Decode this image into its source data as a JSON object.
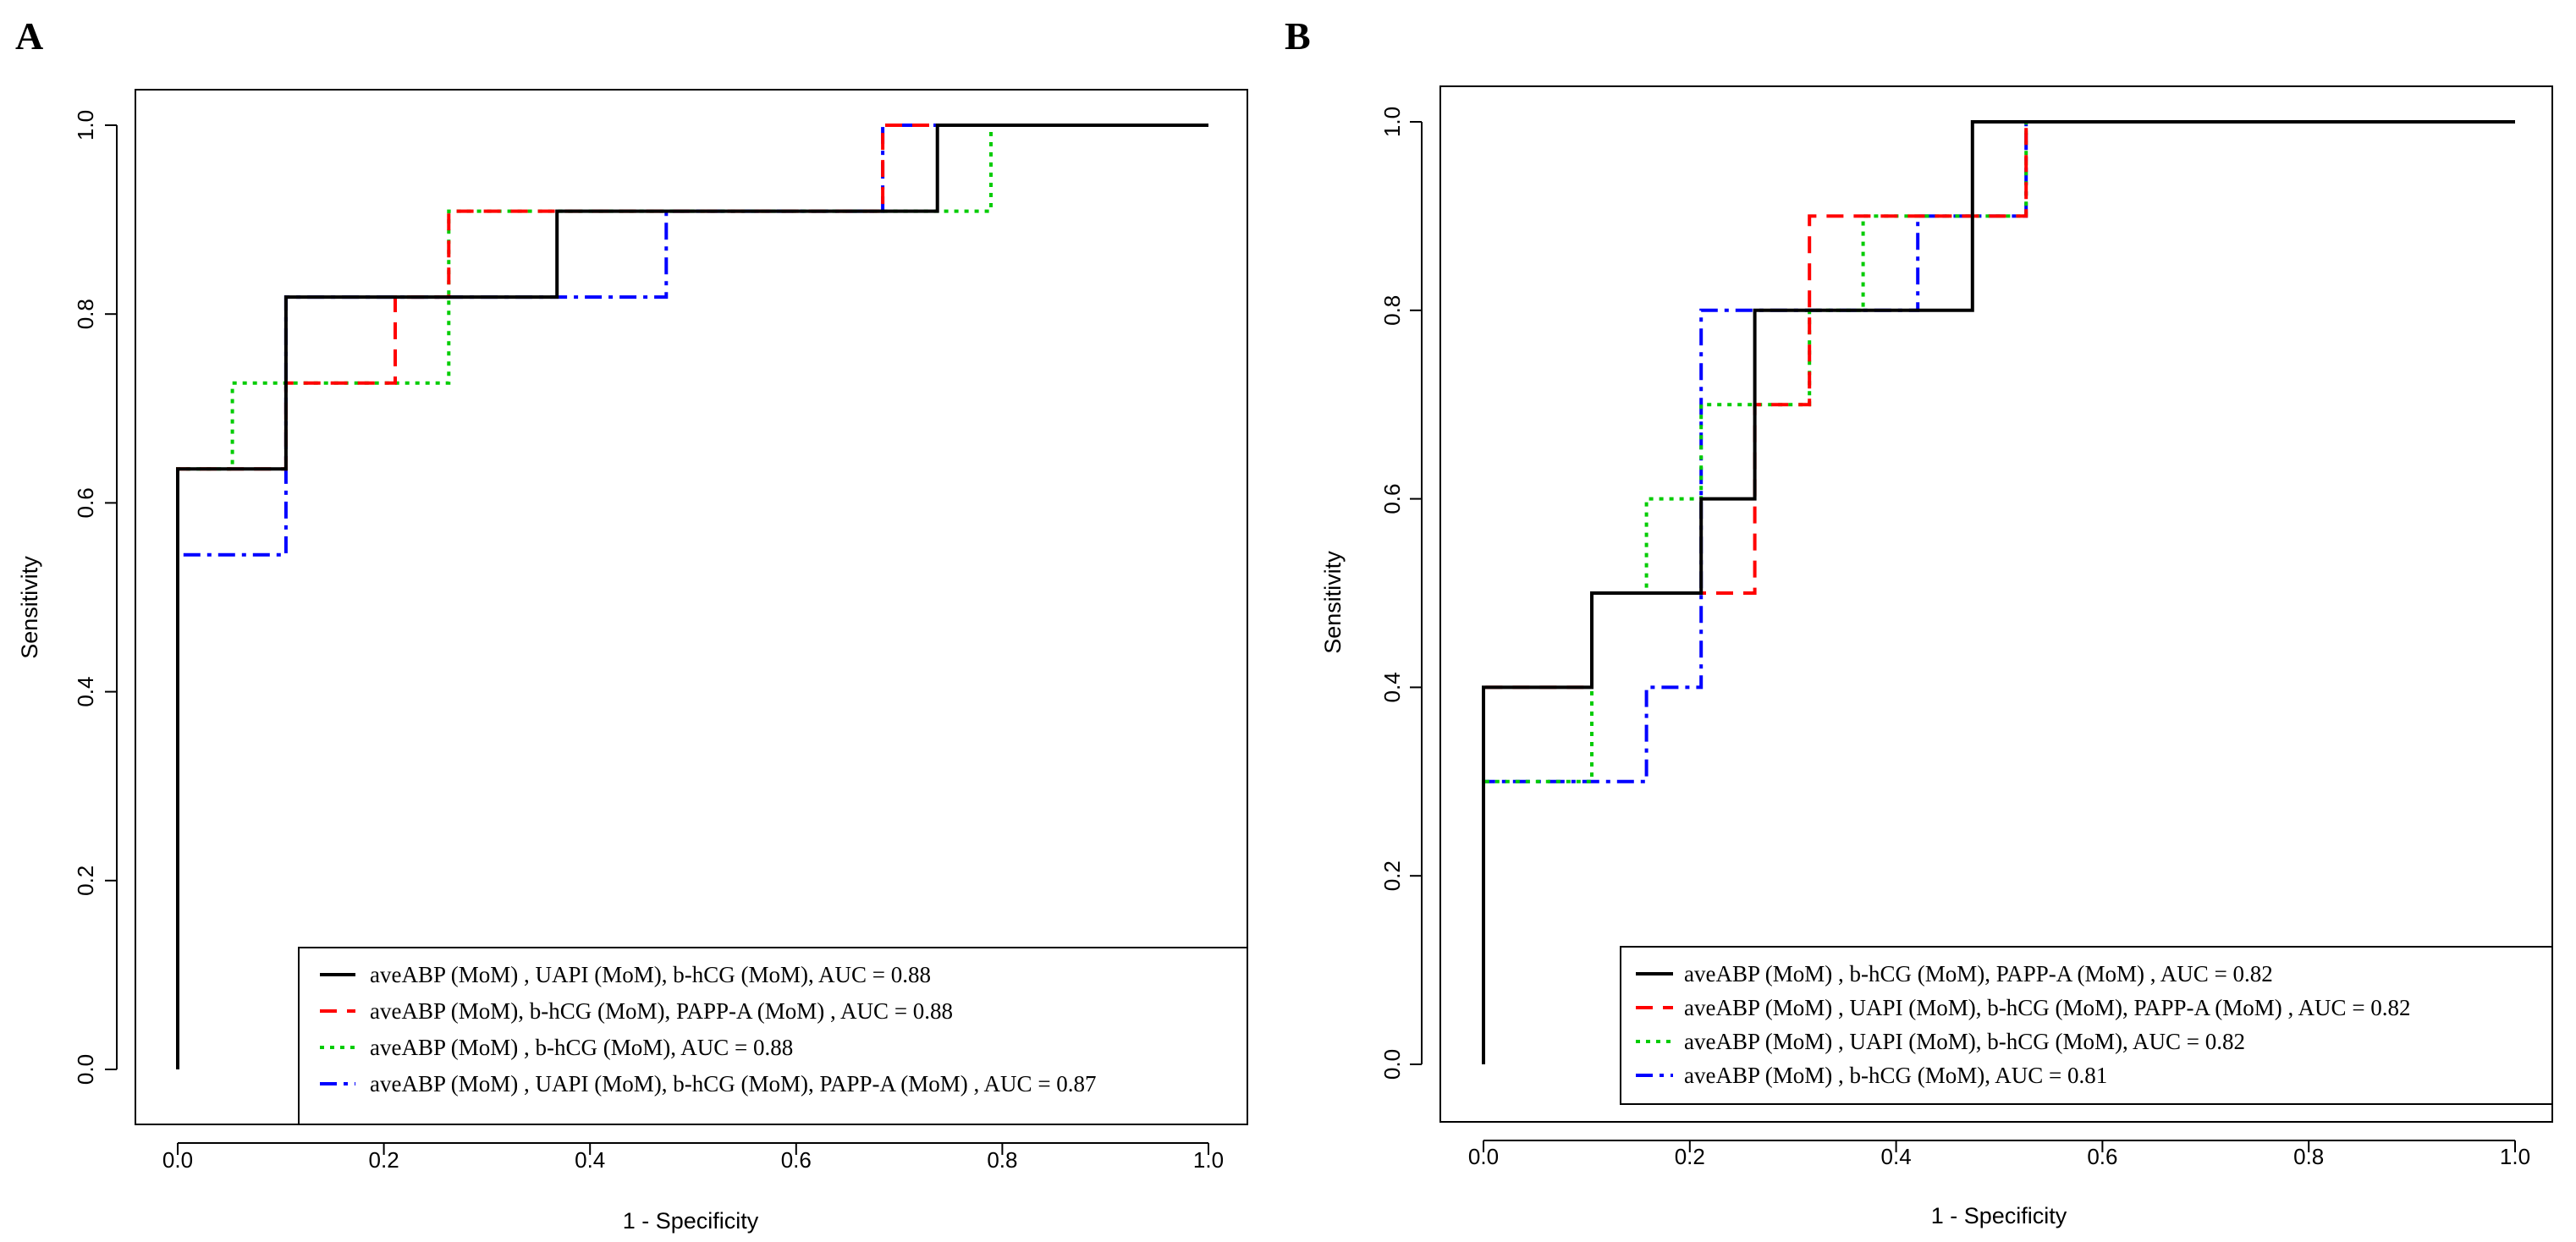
{
  "chart_data": [
    {
      "type": "line",
      "panel": "A",
      "xlabel": "1 - Specificity",
      "ylabel": "Sensitivity",
      "xlim": [
        0,
        1
      ],
      "ylim": [
        0,
        1
      ],
      "xticks": [
        "0.0",
        "0.2",
        "0.4",
        "0.6",
        "0.8",
        "1.0"
      ],
      "yticks": [
        "0.0",
        "0.2",
        "0.4",
        "0.6",
        "0.8",
        "1.0"
      ],
      "legend_position": "bottom-right",
      "series": [
        {
          "name": "aveABP (MoM) , UAPI (MoM), b-hCG (MoM),  AUC = 0.88",
          "color": "#000000",
          "style": "solid",
          "x": [
            0,
            0,
            0.105,
            0.105,
            0.368,
            0.368,
            0.737,
            0.737,
            1.0
          ],
          "y": [
            0,
            0.636,
            0.636,
            0.818,
            0.818,
            0.909,
            0.909,
            1.0,
            1.0
          ]
        },
        {
          "name": "aveABP (MoM),  b-hCG (MoM),  PAPP-A (MoM) ,  AUC = 0.88",
          "color": "#ff0000",
          "style": "dashed",
          "x": [
            0,
            0,
            0.105,
            0.105,
            0.211,
            0.211,
            0.263,
            0.263,
            0.684,
            0.684,
            1.0
          ],
          "y": [
            0,
            0.636,
            0.636,
            0.727,
            0.727,
            0.818,
            0.818,
            0.909,
            0.909,
            1.0,
            1.0
          ]
        },
        {
          "name": "aveABP (MoM) ,  b-hCG (MoM),  AUC = 0.88",
          "color": "#00cc00",
          "style": "dotted",
          "x": [
            0,
            0,
            0.053,
            0.053,
            0.263,
            0.263,
            0.789,
            0.789,
            1.0
          ],
          "y": [
            0,
            0.636,
            0.636,
            0.727,
            0.727,
            0.909,
            0.909,
            1.0,
            1.0
          ]
        },
        {
          "name": "aveABP (MoM) ,  UAPI (MoM),  b-hCG (MoM),  PAPP-A (MoM) , AUC = 0.87",
          "color": "#0000ff",
          "style": "dashdot",
          "x": [
            0,
            0,
            0.105,
            0.105,
            0.368,
            0.368,
            0.474,
            0.474,
            0.684,
            0.684,
            1.0
          ],
          "y": [
            0,
            0.545,
            0.545,
            0.818,
            0.818,
            0.818,
            0.818,
            0.909,
            0.909,
            1.0,
            1.0
          ]
        }
      ]
    },
    {
      "type": "line",
      "panel": "B",
      "xlabel": "1 - Specificity",
      "ylabel": "Sensitivity",
      "xlim": [
        0,
        1
      ],
      "ylim": [
        0,
        1
      ],
      "xticks": [
        "0.0",
        "0.2",
        "0.4",
        "0.6",
        "0.8",
        "1.0"
      ],
      "yticks": [
        "0.0",
        "0.2",
        "0.4",
        "0.6",
        "0.8",
        "1.0"
      ],
      "legend_position": "bottom-right",
      "series": [
        {
          "name": "aveABP (MoM) ,  b-hCG (MoM),  PAPP-A (MoM) , AUC = 0.82",
          "color": "#000000",
          "style": "solid",
          "x": [
            0,
            0,
            0.105,
            0.105,
            0.211,
            0.211,
            0.263,
            0.263,
            0.474,
            0.474,
            1.0
          ],
          "y": [
            0,
            0.4,
            0.4,
            0.5,
            0.5,
            0.6,
            0.6,
            0.8,
            0.8,
            1.0,
            1.0
          ]
        },
        {
          "name": "aveABP (MoM) ,  UAPI (MoM),  b-hCG (MoM),  PAPP-A (MoM) ,  AUC = 0.82",
          "color": "#ff0000",
          "style": "dashed",
          "x": [
            0,
            0,
            0.105,
            0.105,
            0.263,
            0.263,
            0.316,
            0.316,
            0.526,
            0.526,
            1.0
          ],
          "y": [
            0,
            0.4,
            0.4,
            0.5,
            0.5,
            0.7,
            0.7,
            0.9,
            0.9,
            1.0,
            1.0
          ]
        },
        {
          "name": "aveABP (MoM) ,  UAPI (MoM), b-hCG (MoM),  AUC = 0.82",
          "color": "#00cc00",
          "style": "dotted",
          "x": [
            0,
            0,
            0.105,
            0.105,
            0.158,
            0.158,
            0.211,
            0.211,
            0.316,
            0.316,
            0.368,
            0.368,
            0.526,
            0.526,
            1.0
          ],
          "y": [
            0,
            0.3,
            0.3,
            0.5,
            0.5,
            0.6,
            0.6,
            0.7,
            0.7,
            0.8,
            0.8,
            0.9,
            0.9,
            1.0,
            1.0
          ]
        },
        {
          "name": "aveABP (MoM) ,  b-hCG (MoM),  AUC = 0.81",
          "color": "#0000ff",
          "style": "dashdot",
          "x": [
            0,
            0,
            0.158,
            0.158,
            0.211,
            0.211,
            0.421,
            0.421,
            0.526,
            0.526,
            1.0
          ],
          "y": [
            0,
            0.3,
            0.3,
            0.4,
            0.4,
            0.8,
            0.8,
            0.9,
            0.9,
            1.0,
            1.0
          ]
        }
      ]
    }
  ]
}
